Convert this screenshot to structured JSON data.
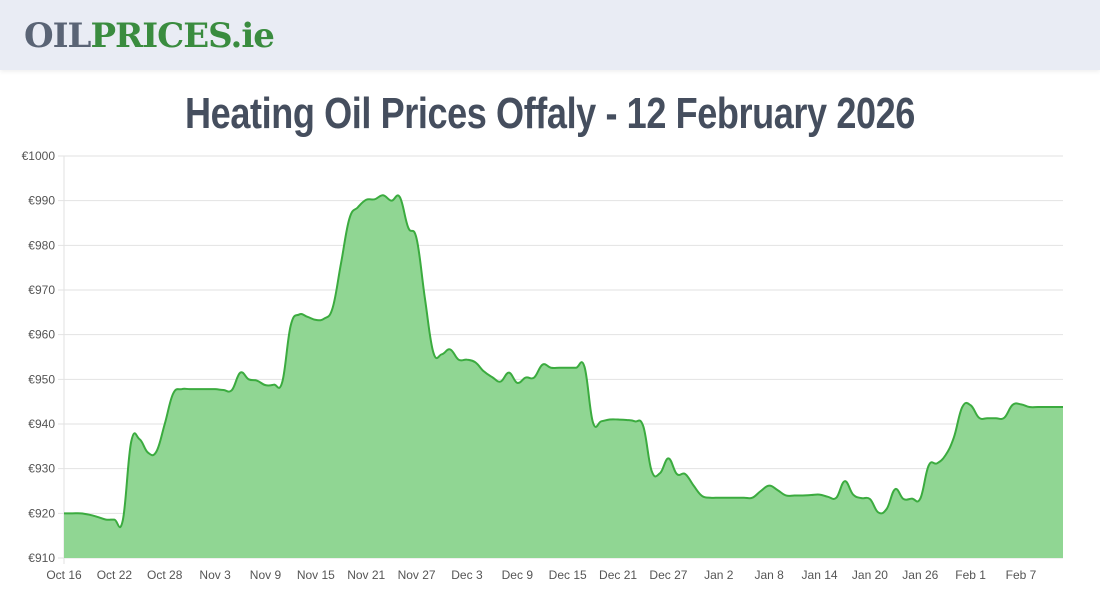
{
  "header": {
    "logo_part1": "OIL",
    "logo_part2": "PRICES.ie",
    "background": "#e9ecf4"
  },
  "page": {
    "title": "Heating Oil Prices Offaly - 12 February 2026"
  },
  "colors": {
    "line": "#3bab3f",
    "fill": "#90d693",
    "grid": "#e2e2e2"
  },
  "chart_data": {
    "type": "area",
    "title": "Heating Oil Prices Offaly - 12 February 2026",
    "xlabel": "",
    "ylabel": "",
    "ylim": [
      910,
      1000
    ],
    "yticks": [
      "€910",
      "€920",
      "€930",
      "€940",
      "€950",
      "€960",
      "€970",
      "€980",
      "€990",
      "€1000"
    ],
    "xticks": [
      "Oct 16",
      "Oct 22",
      "Oct 28",
      "Nov 3",
      "Nov 9",
      "Nov 15",
      "Nov 21",
      "Nov 27",
      "Dec 3",
      "Dec 9",
      "Dec 15",
      "Dec 21",
      "Dec 27",
      "Jan 2",
      "Jan 8",
      "Jan 14",
      "Jan 20",
      "Jan 26",
      "Feb 1",
      "Feb 7"
    ],
    "grid": true,
    "legend": "none",
    "x_start": "Oct 16",
    "x_end": "Feb 12",
    "series": [
      {
        "name": "Heating oil price (€)",
        "values": [
          920,
          920,
          920,
          919.7,
          919.2,
          918.6,
          918.6,
          918.4,
          936,
          936.6,
          933.6,
          933.8,
          940,
          946.8,
          947.8,
          947.8,
          947.8,
          947.8,
          947.8,
          947.6,
          947.6,
          951.5,
          950,
          949.7,
          948.7,
          948.8,
          949.4,
          962,
          964.5,
          964,
          963.3,
          963.6,
          966,
          976,
          986,
          988.5,
          990.2,
          990.3,
          991.2,
          990,
          990.8,
          984,
          981.5,
          968,
          956,
          955.6,
          956.7,
          954.4,
          954.4,
          953.8,
          951.8,
          950.5,
          949.5,
          951.5,
          949.2,
          950.4,
          950.4,
          953.3,
          952.6,
          952.6,
          952.6,
          952.6,
          952.8,
          940.4,
          940.6,
          941,
          941,
          940.9,
          940.6,
          939.5,
          929.5,
          929,
          932.3,
          928.8,
          928.8,
          926.2,
          923.9,
          923.5,
          923.5,
          923.5,
          923.5,
          923.5,
          923.5,
          925,
          926.2,
          925.2,
          924,
          924,
          924,
          924.1,
          924.2,
          923.7,
          923.5,
          927.2,
          924.2,
          923.4,
          923.2,
          920.2,
          921,
          925.4,
          923.2,
          923.3,
          923.3,
          930.7,
          931.2,
          933,
          937,
          943.8,
          944.2,
          941.4,
          941.3,
          941.3,
          941.4,
          944.3,
          944.4,
          943.8,
          943.8,
          943.8,
          943.8,
          943.8
        ]
      }
    ]
  }
}
